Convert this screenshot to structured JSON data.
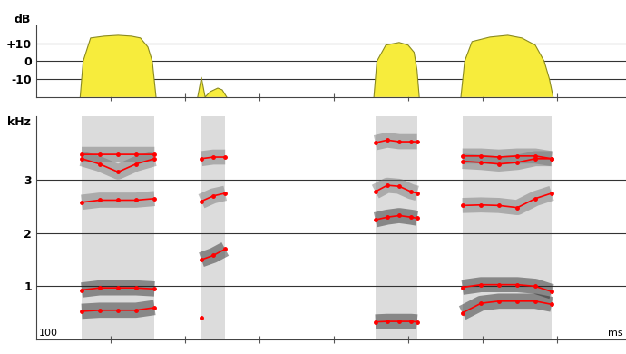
{
  "chart_data": [
    {
      "type": "area",
      "y_label": "dB",
      "x": [
        59,
        63,
        73,
        91,
        110,
        128,
        140,
        150,
        156,
        161,
        null,
        217,
        222,
        227,
        234,
        244,
        250,
        256,
        null,
        454,
        458,
        470,
        488,
        500,
        508,
        512,
        515,
        null,
        571,
        576,
        586,
        610,
        634,
        653,
        671,
        683,
        690,
        695
      ],
      "values": [
        -20,
        0,
        13,
        14,
        14.5,
        14,
        13,
        8,
        0,
        -20,
        null,
        -20,
        -9,
        -20,
        -17,
        -15,
        -16,
        -20,
        null,
        -20,
        0,
        9,
        10.5,
        9,
        5,
        -5,
        -20,
        null,
        -20,
        0,
        11,
        13.5,
        14.5,
        13,
        9,
        0,
        -10,
        -20
      ],
      "color": "#f7ec3c",
      "xlim": [
        0,
        793
      ],
      "xticks": [
        100,
        200,
        300,
        400,
        500,
        600,
        700
      ],
      "ylim": [
        -20,
        20
      ],
      "yticks": [
        {
          "value": 10,
          "label": "+10"
        },
        0,
        -10
      ],
      "grid": true,
      "tick_labels": "y"
    },
    {
      "type": "scatter",
      "y_label": "kHz",
      "annotations": [
        "100",
        "ms"
      ],
      "x": [
        61,
        85,
        110,
        134,
        159,
        null,
        222,
        238,
        254,
        null,
        456,
        472,
        488,
        504,
        512,
        null,
        573,
        598,
        622,
        647,
        671,
        693
      ],
      "series": [
        {
          "color": "#ff0000",
          "marker": "o",
          "line_style": "solid",
          "values": [
            0.53,
            0.55,
            0.55,
            0.55,
            0.6,
            null,
            0.41,
            null,
            null,
            null,
            0.33,
            0.34,
            0.34,
            0.34,
            0.33,
            null,
            0.5,
            0.68,
            0.72,
            0.72,
            0.72,
            0.66
          ]
        },
        {
          "color": "#ff0000",
          "marker": "o",
          "line_style": "solid",
          "values": [
            0.93,
            0.97,
            0.97,
            0.97,
            0.95,
            null,
            1.5,
            1.58,
            1.7,
            null,
            2.25,
            2.3,
            2.33,
            2.3,
            2.28,
            null,
            0.98,
            1.03,
            1.03,
            1.03,
            1.0,
            0.9
          ]
        },
        {
          "color": "#ff0000",
          "marker": "o",
          "line_style": "solid",
          "values": [
            2.58,
            2.62,
            2.62,
            2.62,
            2.65,
            null,
            2.6,
            2.7,
            2.75,
            null,
            2.78,
            2.9,
            2.88,
            2.78,
            2.75,
            null,
            2.52,
            2.53,
            2.52,
            2.48,
            2.65,
            2.75
          ]
        },
        {
          "color": "#ff0000",
          "marker": "o",
          "line_style": "solid",
          "values": [
            3.4,
            3.3,
            3.15,
            3.3,
            3.4,
            null,
            3.4,
            3.43,
            3.43,
            null,
            3.7,
            3.75,
            3.72,
            3.72,
            3.72,
            null,
            3.35,
            3.33,
            3.3,
            3.33,
            3.4,
            3.4
          ]
        },
        {
          "color": "#ff0000",
          "marker": "o",
          "line_style": "solid",
          "values": [
            3.48,
            3.48,
            3.48,
            3.48,
            3.48,
            null,
            null,
            null,
            null,
            null,
            null,
            null,
            null,
            null,
            null,
            null,
            3.45,
            3.45,
            3.43,
            3.45,
            3.45,
            3.4
          ]
        }
      ],
      "xlim": [
        0,
        793
      ],
      "xticks": [
        100,
        200,
        300,
        400,
        500,
        600,
        700
      ],
      "ylim": [
        0,
        4.2
      ],
      "yticks": [
        1,
        2,
        3
      ],
      "grid": true,
      "tick_labels": "y"
    }
  ]
}
